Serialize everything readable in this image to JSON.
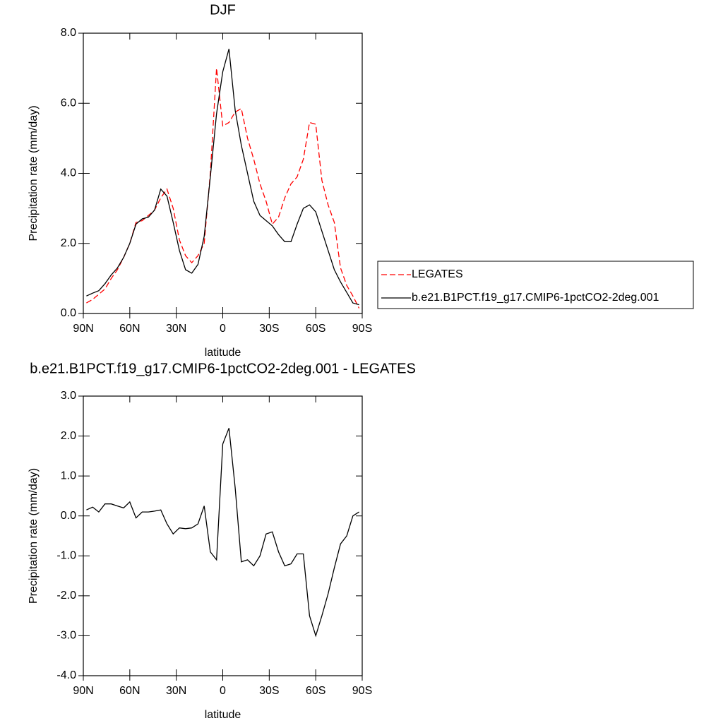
{
  "chart_data": [
    {
      "type": "line",
      "title": "DJF",
      "x_label": "latitude",
      "y_label": "Precipitation rate (mm/day)",
      "x": [
        88,
        84,
        80,
        76,
        72,
        68,
        64,
        60,
        56,
        52,
        48,
        44,
        40,
        36,
        32,
        28,
        24,
        20,
        16,
        12,
        8,
        4,
        0,
        -4,
        -8,
        -12,
        -16,
        -20,
        -24,
        -28,
        -32,
        -36,
        -40,
        -44,
        -48,
        -52,
        -56,
        -60,
        -64,
        -68,
        -72,
        -76,
        -80,
        -84,
        -88
      ],
      "series": [
        {
          "name": "LEGATES",
          "color": "#ff0000",
          "line_style": "dashed",
          "values": [
            0.3,
            0.4,
            0.55,
            0.7,
            1.0,
            1.25,
            1.6,
            2.0,
            2.6,
            2.65,
            2.8,
            2.95,
            3.3,
            3.55,
            3.0,
            2.1,
            1.65,
            1.45,
            1.65,
            2.0,
            4.0,
            7.0,
            5.35,
            5.45,
            5.75,
            5.85,
            5.0,
            4.4,
            3.7,
            3.2,
            2.55,
            2.75,
            3.3,
            3.7,
            3.9,
            4.4,
            5.45,
            5.4,
            3.8,
            3.1,
            2.6,
            1.3,
            0.8,
            0.5,
            0.15
          ]
        },
        {
          "name": "b.e21.B1PCT.f19_g17.CMIP6-1pctCO2-2deg.001",
          "color": "#000000",
          "line_style": "solid",
          "values": [
            0.5,
            0.58,
            0.65,
            0.85,
            1.1,
            1.3,
            1.6,
            2.0,
            2.55,
            2.7,
            2.75,
            2.95,
            3.55,
            3.35,
            2.6,
            1.8,
            1.25,
            1.15,
            1.4,
            2.2,
            3.9,
            5.7,
            6.9,
            7.55,
            5.8,
            4.8,
            4.0,
            3.2,
            2.8,
            2.65,
            2.5,
            2.25,
            2.05,
            2.05,
            2.55,
            3.0,
            3.1,
            2.9,
            2.35,
            1.8,
            1.25,
            0.9,
            0.6,
            0.3,
            0.25
          ]
        }
      ],
      "xlim": [
        90,
        -90
      ],
      "xticks": [
        {
          "value": 90,
          "label": "90N"
        },
        {
          "value": 60,
          "label": "60N"
        },
        {
          "value": 30,
          "label": "30N"
        },
        0,
        {
          "value": -30,
          "label": "30S"
        },
        {
          "value": -60,
          "label": "60S"
        },
        {
          "value": -90,
          "label": "90S"
        }
      ],
      "ylim": [
        0,
        8
      ],
      "yticks": [
        {
          "value": 0,
          "label": "0.0"
        },
        {
          "value": 2,
          "label": "2.0"
        },
        {
          "value": 4,
          "label": "4.0"
        },
        {
          "value": 6,
          "label": "6.0"
        },
        {
          "value": 8,
          "label": "8.0"
        }
      ],
      "legend": "right"
    },
    {
      "type": "line",
      "title": "b.e21.B1PCT.f19_g17.CMIP6-1pctCO2-2deg.001 - LEGATES",
      "x_label": "latitude",
      "y_label": "Precipitation rate (mm/day)",
      "x": [
        88,
        84,
        80,
        76,
        72,
        68,
        64,
        60,
        56,
        52,
        48,
        44,
        40,
        36,
        32,
        28,
        24,
        20,
        16,
        12,
        8,
        4,
        0,
        -4,
        -8,
        -12,
        -16,
        -20,
        -24,
        -28,
        -32,
        -36,
        -40,
        -44,
        -48,
        -52,
        -56,
        -60,
        -64,
        -68,
        -72,
        -76,
        -80,
        -84,
        -88
      ],
      "series": [
        {
          "color": "#000000",
          "line_style": "solid",
          "values": [
            0.15,
            0.22,
            0.1,
            0.3,
            0.3,
            0.25,
            0.2,
            0.35,
            -0.05,
            0.1,
            0.1,
            0.12,
            0.15,
            -0.2,
            -0.45,
            -0.3,
            -0.32,
            -0.3,
            -0.2,
            0.25,
            -0.9,
            -1.1,
            1.8,
            2.2,
            0.7,
            -1.15,
            -1.1,
            -1.25,
            -1.0,
            -0.45,
            -0.4,
            -0.9,
            -1.25,
            -1.2,
            -0.95,
            -0.95,
            -2.5,
            -3.0,
            -2.5,
            -1.95,
            -1.3,
            -0.7,
            -0.5,
            0.0,
            0.1
          ]
        }
      ],
      "xlim": [
        90,
        -90
      ],
      "xticks": [
        {
          "value": 90,
          "label": "90N"
        },
        {
          "value": 60,
          "label": "60N"
        },
        {
          "value": 30,
          "label": "30N"
        },
        0,
        {
          "value": -30,
          "label": "30S"
        },
        {
          "value": -60,
          "label": "60S"
        },
        {
          "value": -90,
          "label": "90S"
        }
      ],
      "ylim": [
        -4,
        3
      ],
      "yticks": [
        {
          "value": -4,
          "label": "-4.0"
        },
        {
          "value": -3,
          "label": "-3.0"
        },
        {
          "value": -2,
          "label": "-2.0"
        },
        {
          "value": -1,
          "label": "-1.0"
        },
        {
          "value": 0,
          "label": "0.0"
        },
        {
          "value": 1,
          "label": "1.0"
        },
        {
          "value": 2,
          "label": "2.0"
        },
        {
          "value": 3,
          "label": "3.0"
        }
      ]
    }
  ]
}
